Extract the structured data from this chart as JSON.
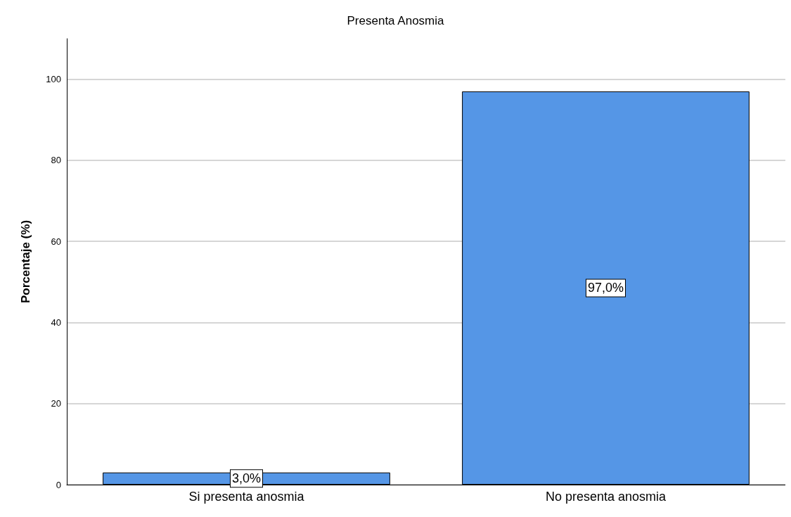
{
  "chart_data": {
    "type": "bar",
    "title": "Presenta Anosmia",
    "ylabel": "Porcentaje (%)",
    "categories": [
      "Si presenta anosmia",
      "No presenta anosmia"
    ],
    "values": [
      3.0,
      97.0
    ],
    "color": "#5596e6",
    "value_labels": [
      "3,0%",
      "97,0%"
    ],
    "ylim": [
      0,
      110
    ],
    "yticks": [
      0,
      20,
      40,
      60,
      80,
      100
    ],
    "grid": "y"
  }
}
